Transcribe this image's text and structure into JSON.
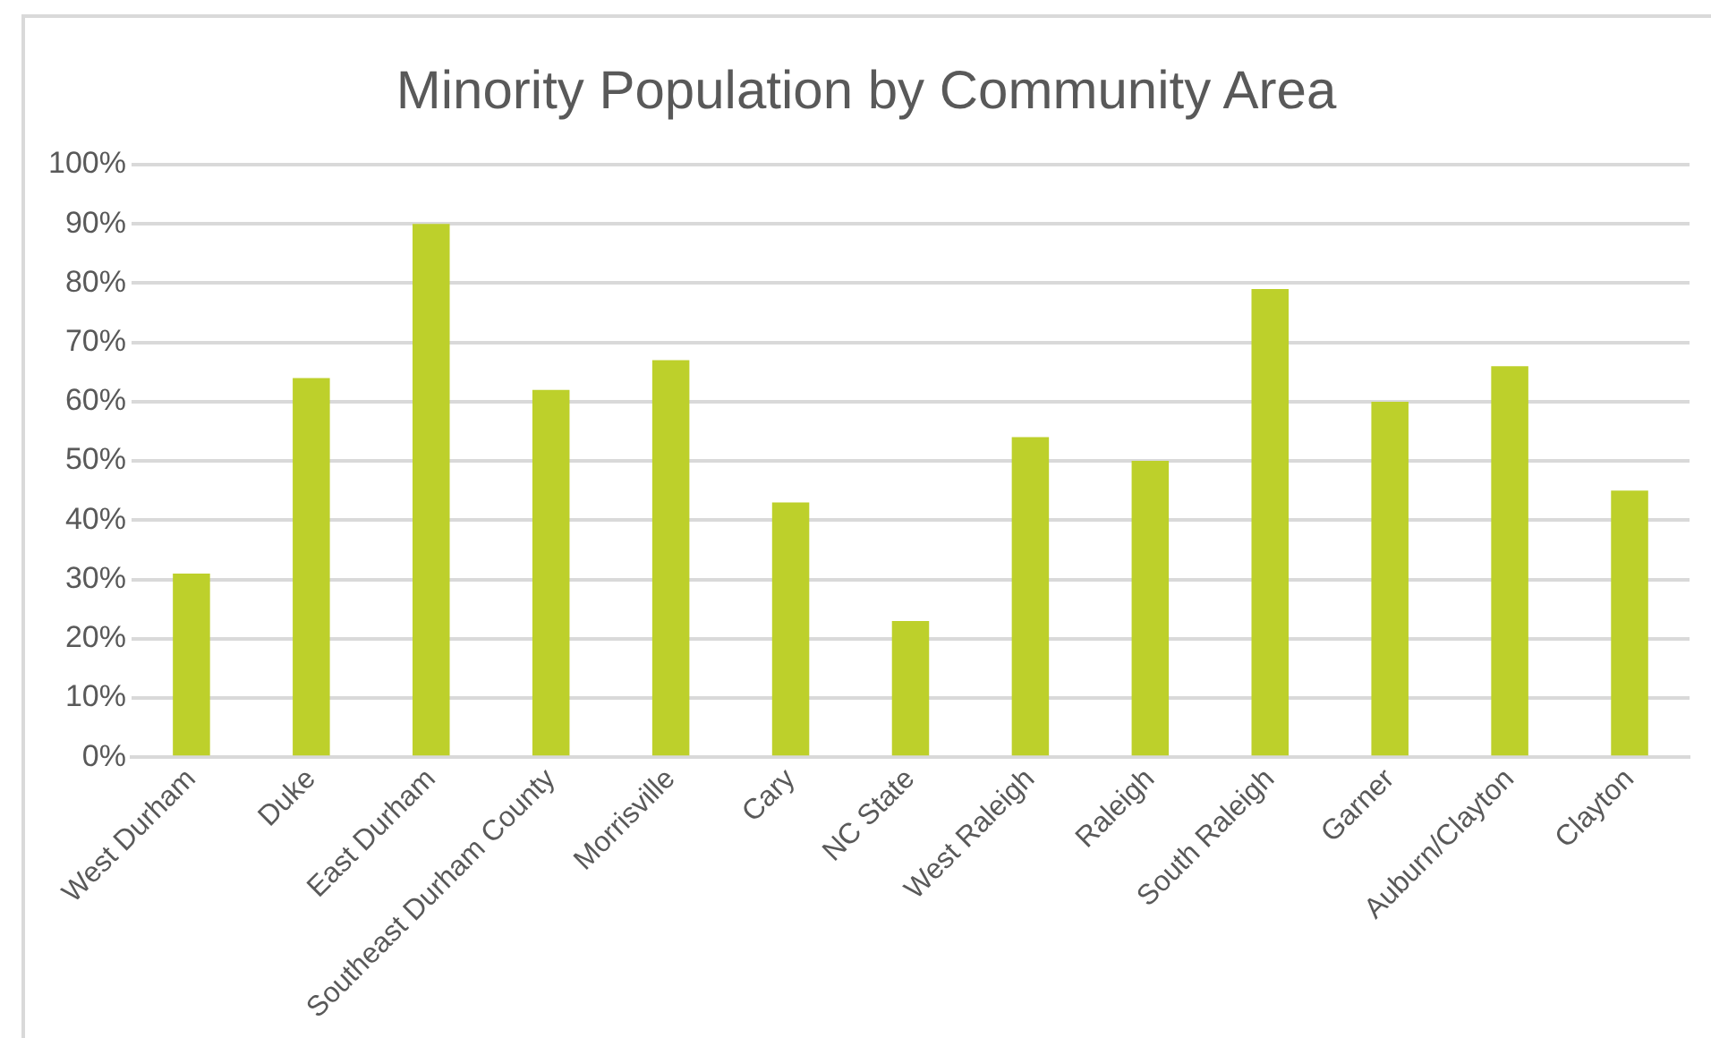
{
  "chart_data": {
    "type": "bar",
    "title": "Minority Population by Community Area",
    "categories": [
      "West Durham",
      "Duke",
      "East Durham",
      "Southeast Durham County",
      "Morrisville",
      "Cary",
      "NC State",
      "West Raleigh",
      "Raleigh",
      "South Raleigh",
      "Garner",
      "Auburn/Clayton",
      "Clayton"
    ],
    "values": [
      31,
      64,
      90,
      62,
      67,
      43,
      23,
      54,
      50,
      79,
      60,
      66,
      45
    ],
    "color": "#bdd02b",
    "ylim": [
      0,
      100
    ],
    "yticks": [
      {
        "value": 0,
        "label": "0%"
      },
      {
        "value": 10,
        "label": "10%"
      },
      {
        "value": 20,
        "label": "20%"
      },
      {
        "value": 30,
        "label": "30%"
      },
      {
        "value": 40,
        "label": "40%"
      },
      {
        "value": 50,
        "label": "50%"
      },
      {
        "value": 60,
        "label": "60%"
      },
      {
        "value": 70,
        "label": "70%"
      },
      {
        "value": 80,
        "label": "80%"
      },
      {
        "value": 90,
        "label": "90%"
      },
      {
        "value": 100,
        "label": "100%"
      }
    ],
    "grid": "y",
    "legend": false
  }
}
